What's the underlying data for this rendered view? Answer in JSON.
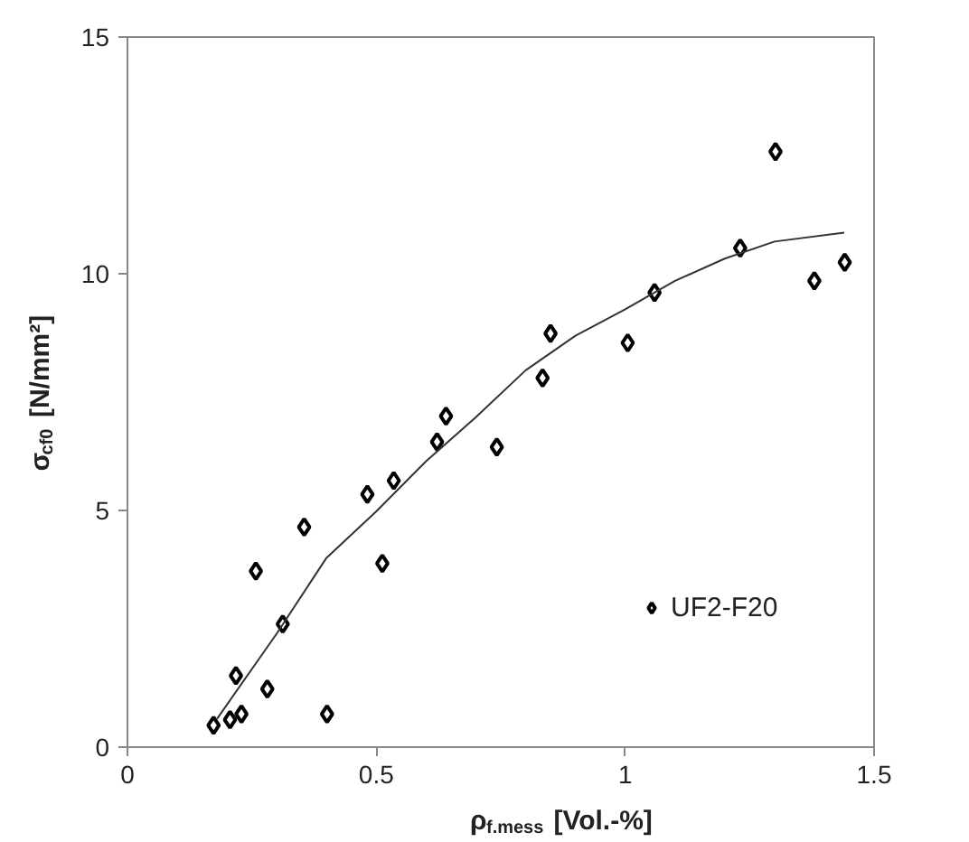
{
  "chart_data": {
    "type": "scatter",
    "xlabel": "ρ$_{f.mess}$ [Vol.-%]",
    "ylabel": "σ$_{cf0}$ [N/mm²]",
    "xlim": [
      0,
      1.5
    ],
    "xticks": [
      0,
      0.5,
      1,
      1.5
    ],
    "ylim": [
      0,
      15
    ],
    "yticks": [
      0,
      5,
      10,
      15
    ],
    "grid": false,
    "legend": "right",
    "marker": "diamond",
    "series": [
      {
        "name": "UF2-F20",
        "color": "#000000",
        "x": [
          0.173,
          0.206,
          0.229,
          0.218,
          0.281,
          0.312,
          0.258,
          0.401,
          0.355,
          0.482,
          0.512,
          0.535,
          0.622,
          0.64,
          0.742,
          0.834,
          0.85,
          1.005,
          1.059,
          1.231,
          1.302,
          1.38,
          1.441
        ],
        "values": [
          0.46,
          0.58,
          0.7,
          1.51,
          1.23,
          2.6,
          3.72,
          0.7,
          4.65,
          5.34,
          3.88,
          5.63,
          6.45,
          6.99,
          6.34,
          7.8,
          8.74,
          8.54,
          9.6,
          10.54,
          12.58,
          9.85,
          10.24
        ]
      },
      {
        "color": "#333333",
        "type": "line",
        "marker": "none",
        "x": [
          0.18,
          0.3,
          0.4,
          0.5,
          0.6,
          0.7,
          0.8,
          0.9,
          1.0,
          1.1,
          1.2,
          1.3,
          1.44
        ],
        "values": [
          0.6,
          2.4,
          4.0,
          4.98,
          6.04,
          6.97,
          7.96,
          8.69,
          9.25,
          9.85,
          10.32,
          10.68,
          10.87
        ]
      }
    ]
  }
}
